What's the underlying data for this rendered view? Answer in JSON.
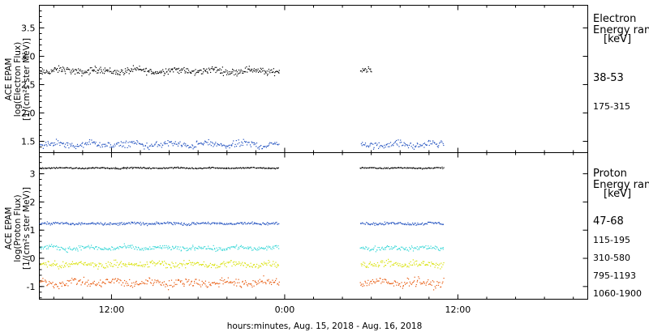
{
  "xlabel": "hours:minutes, Aug. 15, 2018 - Aug. 16, 2018",
  "x_ticks": [
    "12:00",
    "0:00",
    "12:00"
  ],
  "colors": {
    "black": "#000000",
    "blue": "#1f4fbf",
    "cyan": "#33d6d6",
    "yellow": "#d8e000",
    "orange": "#e8580a"
  },
  "chart_data": [
    {
      "type": "scatter",
      "ylabel_lines": [
        "ACE EPAM",
        "log(Electron Flux)",
        "[1/(cm²s ster MeV)]"
      ],
      "legend_title_lines": [
        "Electron",
        "Energy ran"
      ],
      "legend_unit": "[keV]",
      "y_ticks": [
        "1.5",
        "2.0",
        "2.5",
        "3.0",
        "3.5"
      ],
      "ylim": [
        1.3,
        3.9
      ],
      "xlim_hours": [
        7,
        45
      ],
      "gap_hours": [
        23.6,
        29.2
      ],
      "series": [
        {
          "name": "38-53",
          "color": "black",
          "mean": 2.75,
          "spread": 0.05,
          "start": 7,
          "end": 30.0
        },
        {
          "name": "175-315",
          "color": "blue",
          "mean": 1.45,
          "spread": 0.05,
          "start": 7,
          "end": 35.0
        }
      ]
    },
    {
      "type": "scatter",
      "ylabel_lines": [
        "ACE EPAM",
        "log(Proton Flux)",
        "[1/(cm²s ster MeV)]"
      ],
      "legend_title_lines": [
        "Proton",
        "Energy ran"
      ],
      "legend_unit": "[keV]",
      "y_ticks": [
        "-1",
        "0",
        "1",
        "2",
        "3"
      ],
      "ylim": [
        -1.45,
        3.75
      ],
      "xlim_hours": [
        7,
        45
      ],
      "gap_hours": [
        23.6,
        29.2
      ],
      "series": [
        {
          "name": "47-68",
          "color": "black",
          "mean": 3.22,
          "spread": 0.02,
          "start": 7,
          "end": 35.0
        },
        {
          "name": "115-195",
          "color": "blue",
          "mean": 1.25,
          "spread": 0.04,
          "start": 7,
          "end": 35.0
        },
        {
          "name": "310-580",
          "color": "cyan",
          "mean": 0.38,
          "spread": 0.07,
          "start": 7,
          "end": 35.0
        },
        {
          "name": "795-1193",
          "color": "yellow",
          "mean": -0.2,
          "spread": 0.1,
          "start": 7,
          "end": 35.0
        },
        {
          "name": "1060-1900",
          "color": "orange",
          "mean": -0.85,
          "spread": 0.12,
          "start": 7,
          "end": 35.0
        }
      ]
    }
  ]
}
